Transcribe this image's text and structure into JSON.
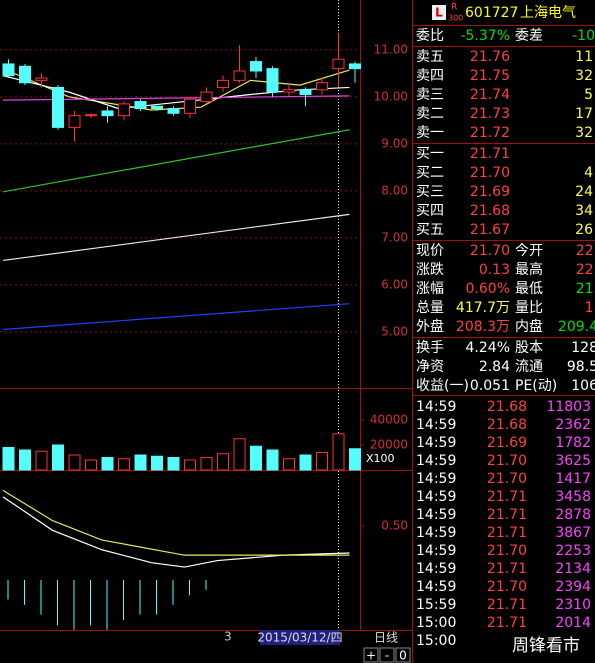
{
  "price_chart": {
    "ylim": [
      3.87,
      12.06
    ],
    "yticks": [
      {
        "value": 11,
        "label": "11.00"
      },
      {
        "value": 10,
        "label": "10.00"
      },
      {
        "value": 9,
        "label": "9.00"
      },
      {
        "value": 8,
        "label": "8.00"
      },
      {
        "value": 7,
        "label": "7.00"
      },
      {
        "value": 6,
        "label": "6.00"
      },
      {
        "value": 5,
        "label": "5.00"
      }
    ],
    "candles": [
      {
        "open": 10.7,
        "high": 10.8,
        "low": 10.4,
        "close": 10.45
      },
      {
        "open": 10.65,
        "high": 10.7,
        "low": 10.25,
        "close": 10.3
      },
      {
        "open": 10.35,
        "high": 10.5,
        "low": 10.2,
        "close": 10.4
      },
      {
        "open": 10.2,
        "high": 10.25,
        "low": 9.3,
        "close": 9.35
      },
      {
        "open": 9.35,
        "high": 9.7,
        "low": 9.05,
        "close": 9.6
      },
      {
        "open": 9.6,
        "high": 9.65,
        "low": 9.55,
        "close": 9.62
      },
      {
        "open": 9.7,
        "high": 9.8,
        "low": 9.45,
        "close": 9.6
      },
      {
        "open": 9.6,
        "high": 9.9,
        "low": 9.5,
        "close": 9.85
      },
      {
        "open": 9.9,
        "high": 9.95,
        "low": 9.7,
        "close": 9.75
      },
      {
        "open": 9.8,
        "high": 9.8,
        "low": 9.7,
        "close": 9.75
      },
      {
        "open": 9.75,
        "high": 9.8,
        "low": 9.6,
        "close": 9.65
      },
      {
        "open": 9.65,
        "high": 10.0,
        "low": 9.55,
        "close": 9.95
      },
      {
        "open": 9.9,
        "high": 10.2,
        "low": 9.85,
        "close": 10.1
      },
      {
        "open": 10.2,
        "high": 10.45,
        "low": 10.1,
        "close": 10.35
      },
      {
        "open": 10.35,
        "high": 11.1,
        "low": 10.3,
        "close": 10.55
      },
      {
        "open": 10.75,
        "high": 10.85,
        "low": 10.4,
        "close": 10.55
      },
      {
        "open": 10.6,
        "high": 10.65,
        "low": 10.0,
        "close": 10.1
      },
      {
        "open": 10.1,
        "high": 10.3,
        "low": 10.0,
        "close": 10.15
      },
      {
        "open": 10.15,
        "high": 10.2,
        "low": 9.8,
        "close": 10.05
      },
      {
        "open": 10.15,
        "high": 10.4,
        "low": 10.05,
        "close": 10.3
      },
      {
        "open": 10.6,
        "high": 11.35,
        "low": 10.2,
        "close": 10.8
      },
      {
        "open": 10.7,
        "high": 10.75,
        "low": 10.3,
        "close": 10.6
      }
    ],
    "ma_lines": [
      {
        "color": "#e8e85a",
        "x": [
          0,
          4,
          9,
          12,
          15,
          18,
          21
        ],
        "values": [
          10.6,
          10.0,
          9.72,
          9.78,
          10.35,
          10.25,
          10.57
        ]
      },
      {
        "color": "#ffffff",
        "x": [
          0,
          4,
          7,
          11,
          15,
          18,
          21
        ],
        "values": [
          10.45,
          10.1,
          9.75,
          9.9,
          10.05,
          10.15,
          10.2
        ]
      },
      {
        "color": "#e040e0",
        "x": [
          0,
          21
        ],
        "values": [
          9.93,
          10.02
        ]
      },
      {
        "color": "#2ec02e",
        "x": [
          0,
          21
        ],
        "values": [
          7.98,
          9.3
        ]
      },
      {
        "color": "#e8e8e8",
        "x": [
          0,
          21
        ],
        "values": [
          6.52,
          7.5
        ]
      },
      {
        "color": "#2040ff",
        "x": [
          0,
          21
        ],
        "values": [
          5.05,
          5.6
        ]
      }
    ]
  },
  "volume_chart": {
    "ylim": [
      0,
      64000
    ],
    "yticks": [
      40000,
      20000
    ],
    "unit_label": "X100",
    "values": [
      18000,
      16000,
      15000,
      20000,
      12000,
      8000,
      10000,
      9000,
      12000,
      11000,
      10000,
      8000,
      10000,
      13000,
      25000,
      19000,
      16000,
      9000,
      12000,
      14000,
      29000,
      17000
    ]
  },
  "macd_chart": {
    "ylim": [
      -0.648,
      0.972
    ],
    "yticks": [
      {
        "value": 0.5,
        "label": "0.50"
      }
    ],
    "dif": {
      "color": "#ffffff",
      "x": [
        0,
        3,
        6,
        9,
        11,
        13,
        17,
        21
      ],
      "values": [
        0.77,
        0.46,
        0.28,
        0.16,
        0.12,
        0.18,
        0.23,
        0.25
      ]
    },
    "dea": {
      "color": "#e8e85a",
      "x": [
        0,
        3,
        6,
        11,
        15,
        21
      ],
      "values": [
        0.83,
        0.55,
        0.37,
        0.23,
        0.23,
        0.23
      ]
    },
    "hist": [
      -0.18,
      -0.23,
      -0.32,
      -0.42,
      -0.46,
      -0.42,
      -0.46,
      -0.37,
      -0.32,
      -0.32,
      -0.23,
      -0.14,
      -0.09
    ]
  },
  "footer": {
    "marker": "3",
    "date": "2015/03/12/四",
    "period": "日线",
    "buttons": [
      "+",
      "-",
      "0"
    ]
  },
  "header": {
    "l": "L",
    "r": "R",
    "index": "300",
    "code": "601727",
    "name": "上海电气"
  },
  "order_ratio": [
    "委比",
    "-5.37%",
    "委差",
    "-10"
  ],
  "asks": [
    [
      "卖五",
      "21.76",
      "11"
    ],
    [
      "卖四",
      "21.75",
      "32"
    ],
    [
      "卖三",
      "21.74",
      "5"
    ],
    [
      "卖二",
      "21.73",
      "17"
    ],
    [
      "卖一",
      "21.72",
      "32"
    ]
  ],
  "bids": [
    [
      "买一",
      "21.71",
      ""
    ],
    [
      "买二",
      "21.70",
      "4"
    ],
    [
      "买三",
      "21.69",
      "24"
    ],
    [
      "买四",
      "21.68",
      "34"
    ],
    [
      "买五",
      "21.67",
      "26"
    ]
  ],
  "stats": [
    [
      "现价",
      "21.70",
      "今开",
      "22."
    ],
    [
      "涨跌",
      "0.13",
      "最高",
      "22."
    ],
    [
      "涨幅",
      "0.60%",
      "最低",
      "21."
    ],
    [
      "总量",
      "417.7万",
      "量比",
      "1."
    ],
    [
      "外盘",
      "208.3万",
      "内盘",
      "209.4"
    ]
  ],
  "info": [
    [
      "换手",
      "4.24%",
      "股本",
      "128"
    ],
    [
      "净资",
      "2.84",
      "流通",
      "98.5"
    ],
    [
      "收益(一)",
      "0.051",
      "PE(动)",
      "106"
    ]
  ],
  "ticks": [
    [
      "14:59",
      "21.68",
      "11803"
    ],
    [
      "14:59",
      "21.68",
      "2362"
    ],
    [
      "14:59",
      "21.69",
      "1782"
    ],
    [
      "14:59",
      "21.70",
      "3625"
    ],
    [
      "14:59",
      "21.70",
      "1417"
    ],
    [
      "14:59",
      "21.71",
      "3458"
    ],
    [
      "14:59",
      "21.71",
      "2878"
    ],
    [
      "14:59",
      "21.71",
      "3867"
    ],
    [
      "14:59",
      "21.70",
      "2253"
    ],
    [
      "14:59",
      "21.71",
      "2134"
    ],
    [
      "14:59",
      "21.70",
      "2394"
    ],
    [
      "15:59",
      "21.71",
      "2310"
    ],
    [
      "15:00",
      "21.71",
      "2014"
    ],
    [
      "15:00",
      "",
      ""
    ]
  ],
  "watermark": "周锋看市"
}
